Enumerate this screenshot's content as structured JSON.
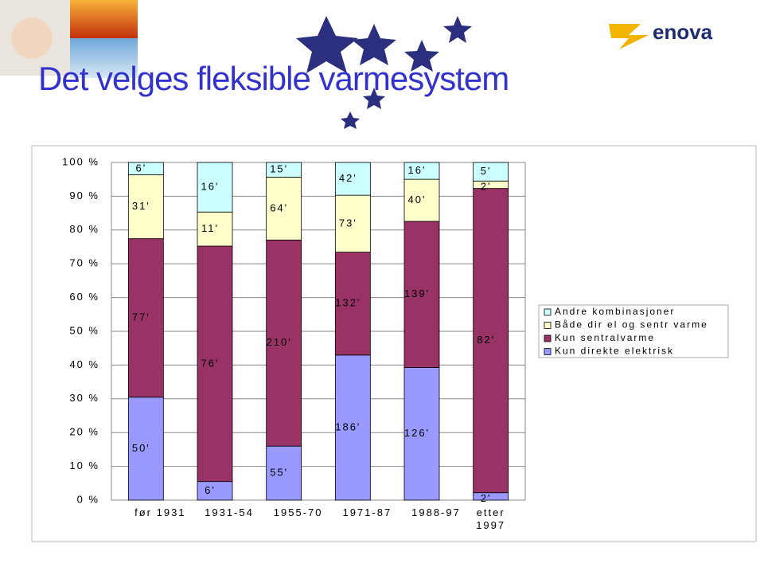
{
  "header": {
    "title": "Det velges fleksible varmesystem",
    "logo": "enova"
  },
  "chart_data": {
    "type": "bar",
    "stacking": "percent",
    "categories": [
      "før 1931",
      "1931-54",
      "1955-70",
      "1971-87",
      "1988-97",
      "etter 1997"
    ],
    "series": [
      {
        "name": "Kun direkte elektrisk",
        "color": "#9999ff",
        "values": [
          50,
          6,
          55,
          186,
          126,
          2
        ],
        "value_labels": [
          "50'",
          "6'",
          "55'",
          "186'",
          "126'",
          "2'"
        ]
      },
      {
        "name": "Kun sentralvarme",
        "color": "#993366",
        "values": [
          77,
          76,
          210,
          132,
          139,
          82
        ],
        "value_labels": [
          "77'",
          "76'",
          "210'",
          "132'",
          "139'",
          "82'"
        ]
      },
      {
        "name": "Både dir el og sentr varme",
        "color": "#ffffcc",
        "values": [
          31,
          11,
          64,
          73,
          40,
          2
        ],
        "value_labels": [
          "31'",
          "11'",
          "64'",
          "73'",
          "40'",
          "2'"
        ]
      },
      {
        "name": "Andre kombinasjoner",
        "color": "#ccffff",
        "values": [
          6,
          16,
          15,
          42,
          16,
          5
        ],
        "value_labels": [
          "6'",
          "16'",
          "15'",
          "42'",
          "16'",
          "5'"
        ]
      }
    ],
    "ylim": [
      0,
      100
    ],
    "yticks": [
      {
        "value": 0,
        "label": "0 %"
      },
      {
        "value": 10,
        "label": "10 %"
      },
      {
        "value": 20,
        "label": "20 %"
      },
      {
        "value": 30,
        "label": "30 %"
      },
      {
        "value": 40,
        "label": "40 %"
      },
      {
        "value": 50,
        "label": "50 %"
      },
      {
        "value": 60,
        "label": "60 %"
      },
      {
        "value": 70,
        "label": "70 %"
      },
      {
        "value": 80,
        "label": "80 %"
      },
      {
        "value": 90,
        "label": "90 %"
      },
      {
        "value": 100,
        "label": "100 %"
      }
    ],
    "grid": true,
    "legend": "right"
  }
}
